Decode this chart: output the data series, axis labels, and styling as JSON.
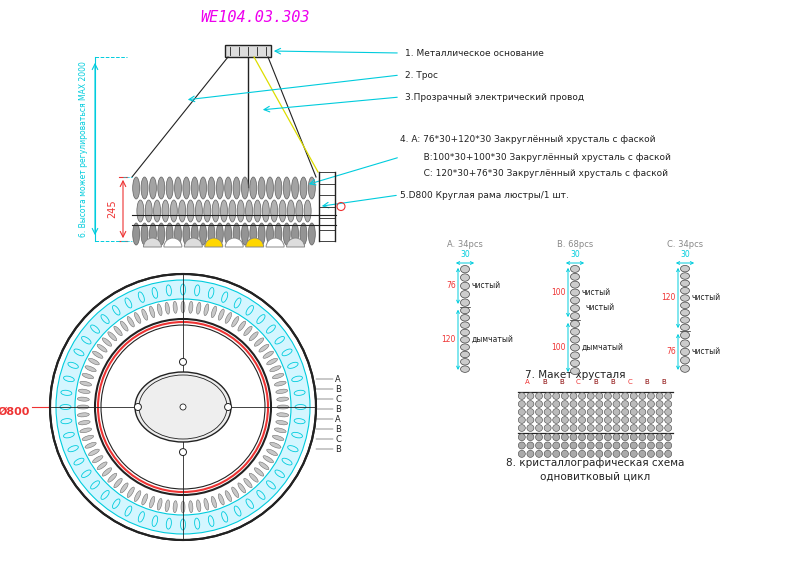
{
  "title": "WE104.03.303",
  "title_color": "#EE00EE",
  "bg_color": "#FFFFFF",
  "cyan": "#00CCDD",
  "red": "#EE3333",
  "dark": "#444444",
  "dark2": "#222222",
  "yellow": "#FFD700",
  "gray_crystal": "#888888",
  "ann1": "1. Металлическое основание",
  "ann2": "2. Трос",
  "ann3": "3.Прозрачный электрический провод",
  "ann4a": "4. A: 76*30+120*30 Закруглённый хрусталь с фаской",
  "ann4b": "   B:100*30+100*30 Закруглённый хрусталь с фаской",
  "ann4c": "   C: 120*30+76*30 Закруглённый хрусталь с фаской",
  "ann5": "5.D800 Круглая рама люстры/1 шт.",
  "ann6": "6. Высота может регулироваться MAX 2000",
  "ann7": "7. Макет хрусталя",
  "ann8a": "8. кристаллографическая схема",
  "ann8b": "одновитковый цикл",
  "dim_245": "245",
  "dim_800": "Ø800",
  "abcb_labels": [
    "A",
    "B",
    "C",
    "B",
    "A",
    "B",
    "C",
    "B"
  ]
}
